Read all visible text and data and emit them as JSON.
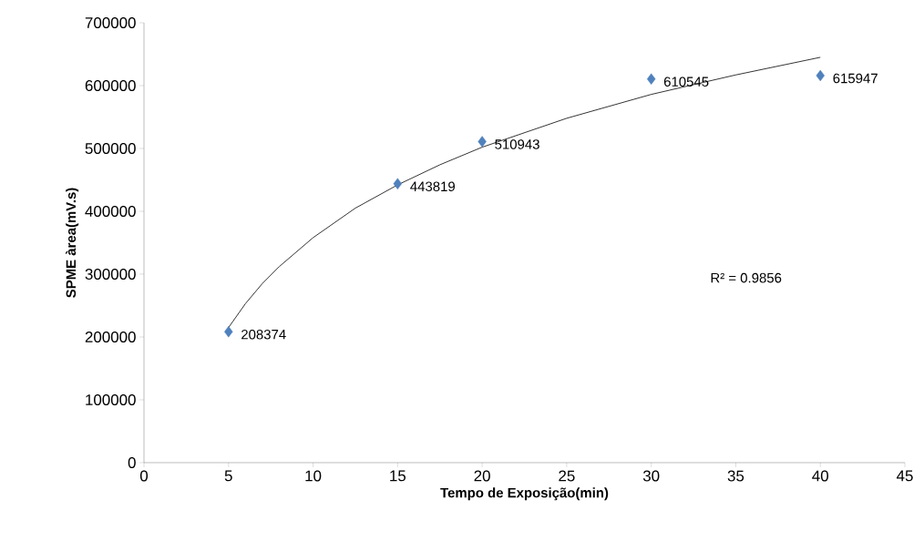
{
  "chart_data": {
    "type": "scatter",
    "xlabel": "Tempo de Exposição(min)",
    "ylabel": "SPME àrea(mV.s)",
    "xlim": [
      0,
      45
    ],
    "xticks": [
      0,
      5,
      10,
      15,
      20,
      25,
      30,
      35,
      40,
      45
    ],
    "ylim": [
      0,
      700000
    ],
    "yticks": [
      0,
      100000,
      200000,
      300000,
      400000,
      500000,
      600000,
      700000
    ],
    "grid": false,
    "annotations": [
      "R² = 0.9856"
    ],
    "series": [
      {
        "marker": "diamond",
        "color": "#4f81bd",
        "x": [
          5,
          15,
          20,
          30,
          40
        ],
        "values": [
          208374,
          443819,
          510943,
          610545,
          615947
        ],
        "value_labels": [
          "208374",
          "443819",
          "510943",
          "610545",
          "615947"
        ]
      },
      {
        "type": "line",
        "marker": "none",
        "line_style": "solid",
        "color": "#000000",
        "x": [
          5,
          6,
          7,
          8,
          10,
          12.5,
          15,
          17.5,
          20,
          25,
          30,
          35,
          40
        ],
        "values": [
          215000,
          253000,
          285000,
          312000,
          358000,
          405000,
          442000,
          474000,
          502000,
          548000,
          586000,
          617000,
          645000
        ]
      }
    ]
  }
}
